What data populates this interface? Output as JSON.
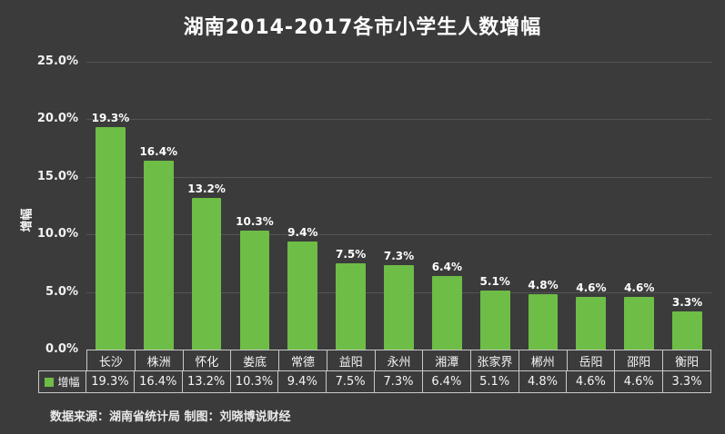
{
  "chart_data": {
    "type": "bar",
    "title": "湖南2014-2017各市小学生人数增幅",
    "ylabel": "增幅",
    "xlabel": "",
    "categories": [
      "长沙",
      "株洲",
      "怀化",
      "娄底",
      "常德",
      "益阳",
      "永州",
      "湘潭",
      "张家界",
      "郴州",
      "岳阳",
      "邵阳",
      "衡阳"
    ],
    "values": [
      19.3,
      16.4,
      13.2,
      10.3,
      9.4,
      7.5,
      7.3,
      6.4,
      5.1,
      4.8,
      4.6,
      4.6,
      3.3
    ],
    "value_labels": [
      "19.3%",
      "16.4%",
      "13.2%",
      "10.3%",
      "9.4%",
      "7.5%",
      "7.3%",
      "6.4%",
      "5.1%",
      "4.8%",
      "4.6%",
      "4.6%",
      "3.3%"
    ],
    "series_name": "增幅",
    "ylim": [
      0,
      25
    ],
    "ytick_values": [
      0,
      5,
      10,
      15,
      20,
      25
    ],
    "ytick_labels": [
      "0.0%",
      "5.0%",
      "10.0%",
      "15.0%",
      "20.0%",
      "25.0%"
    ],
    "grid": true,
    "legend_position": "bottom-table",
    "bar_color": "#6dbd46",
    "background_color": "#3b3b3b"
  },
  "footer": {
    "source": "数据来源：湖南省统计局 制图：刘晓博说财经"
  }
}
